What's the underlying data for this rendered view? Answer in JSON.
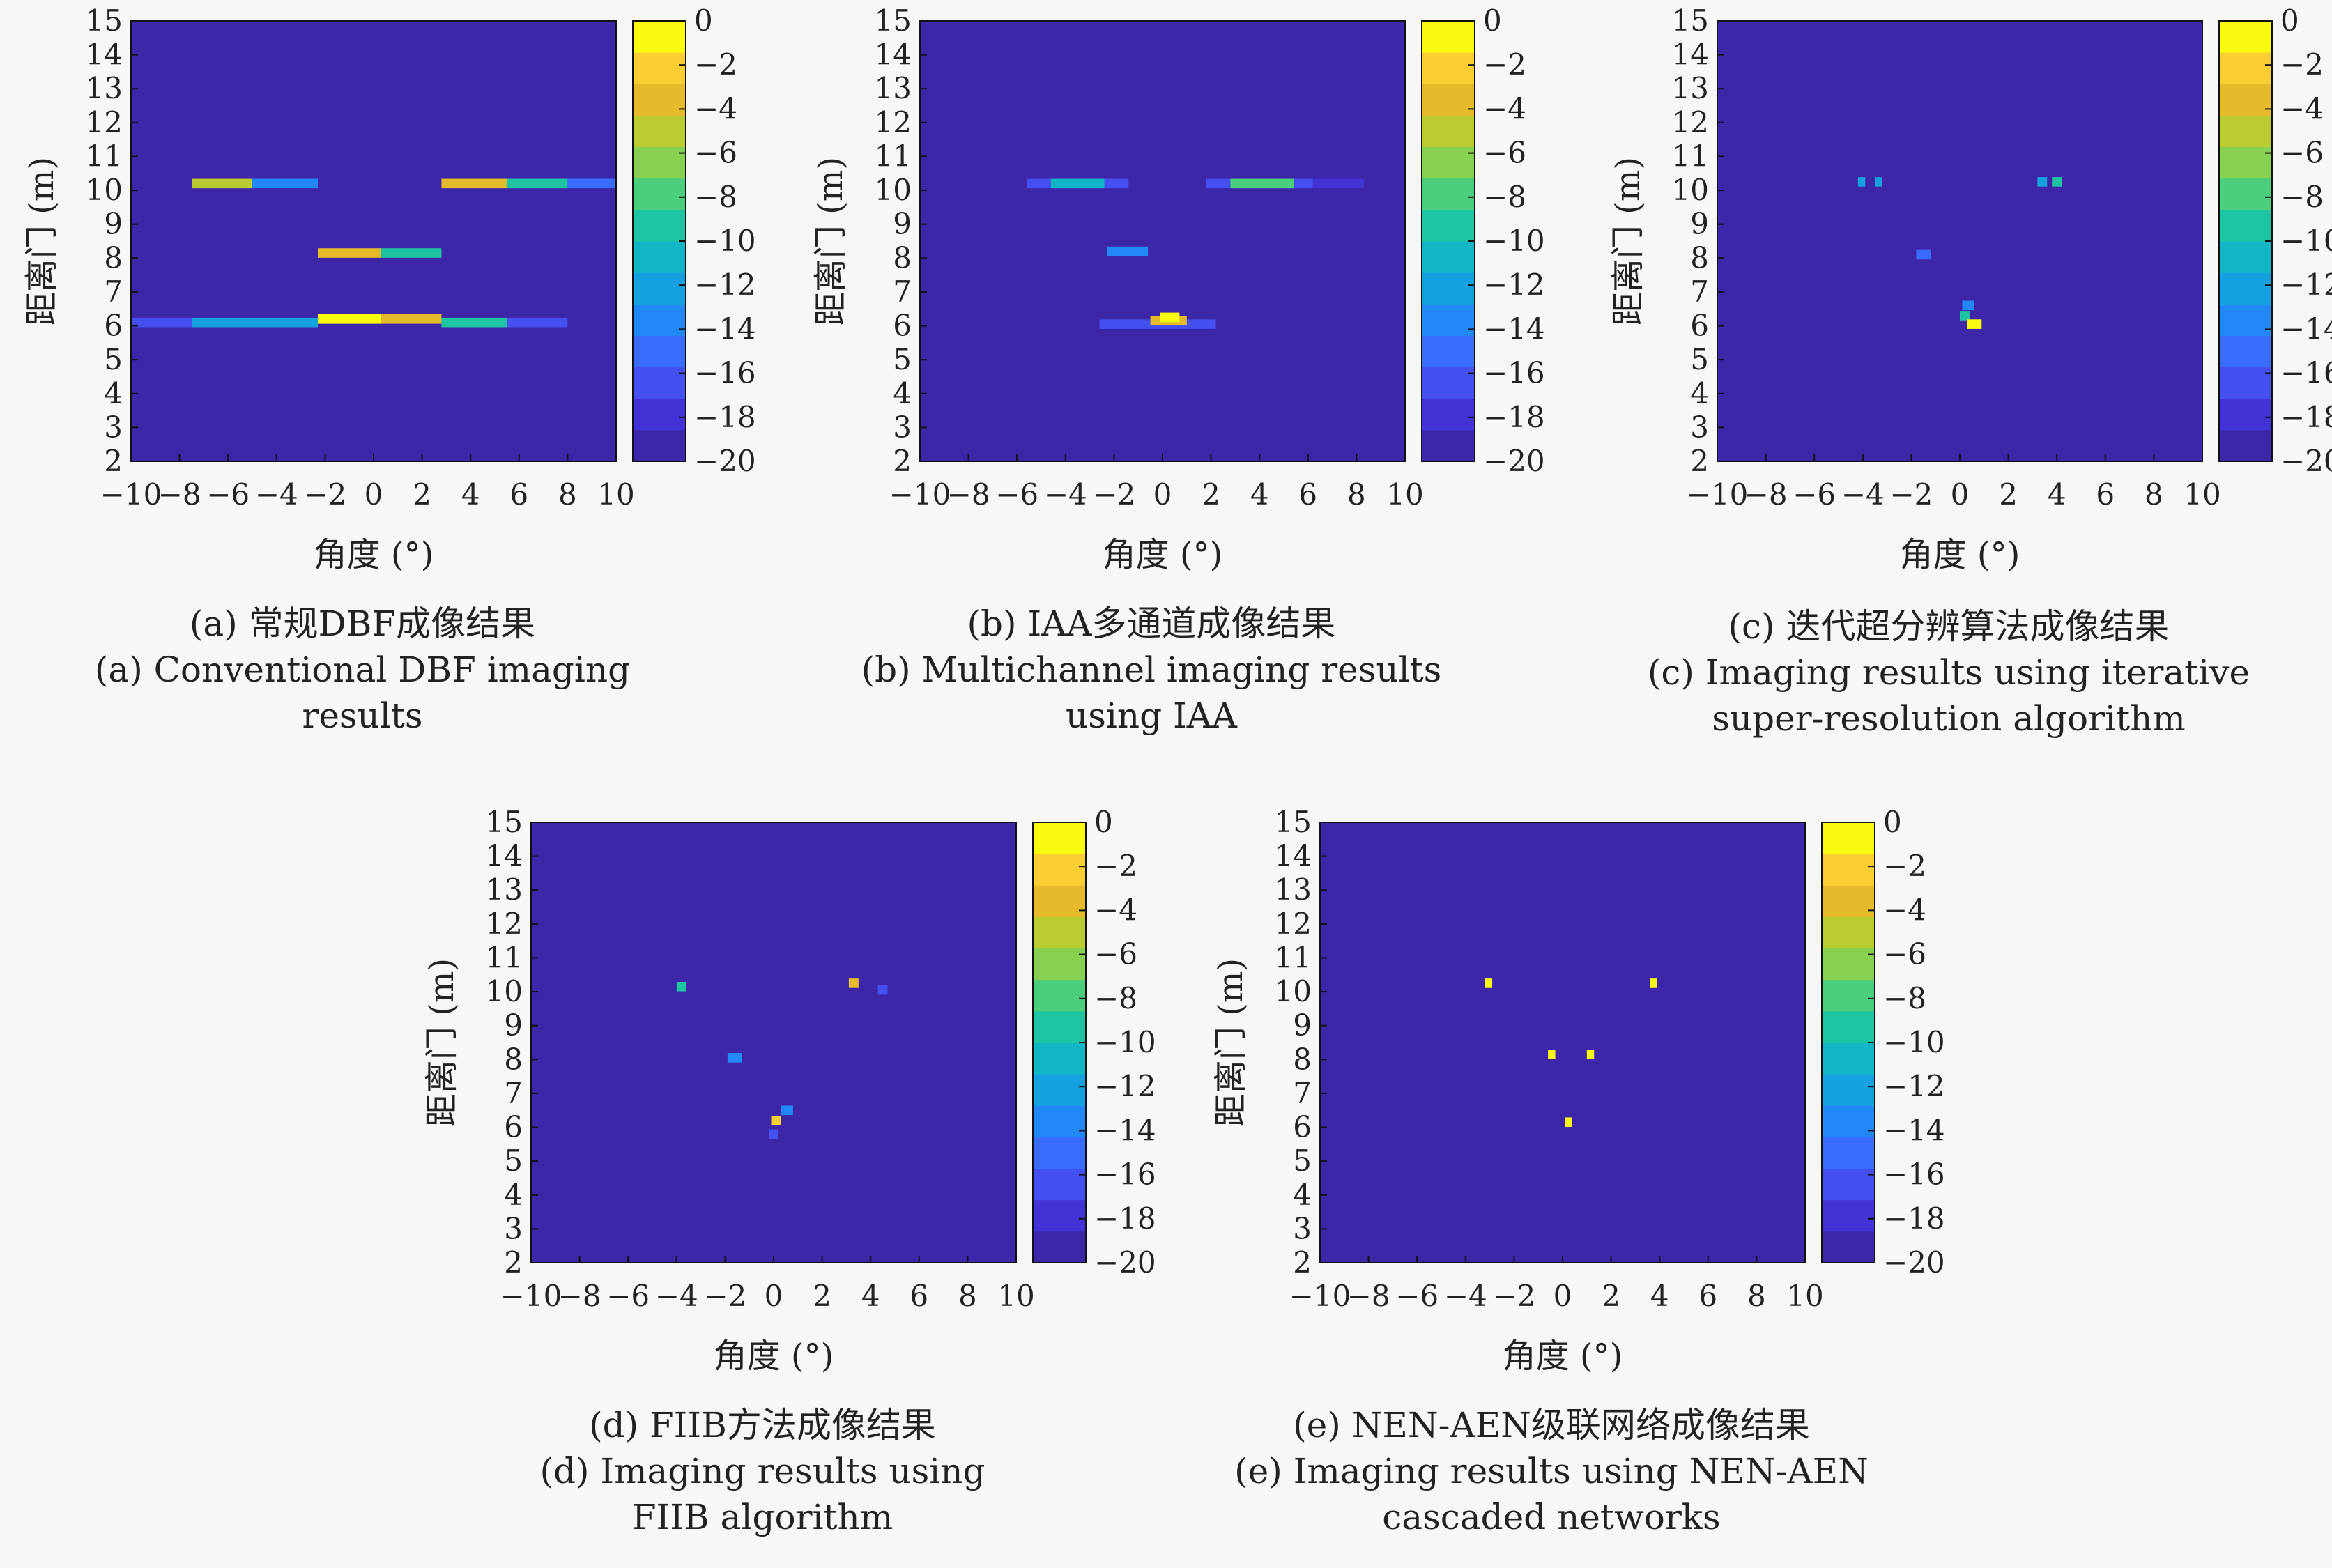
{
  "colors": {
    "background_level": "#3e26a8",
    "colormap": [
      "#3e26a8",
      "#4332d6",
      "#4450f0",
      "#3a6cfd",
      "#2188f6",
      "#15a1e0",
      "#11b5c6",
      "#1fc4a2",
      "#4ccf7c",
      "#86d14f",
      "#bbcb32",
      "#e5bb2c",
      "#fbcf33",
      "#f9fb0e"
    ]
  },
  "chart_data": [
    {
      "id": "a",
      "type": "heatmap",
      "xlabel": "角度 (°)",
      "ylabel": "距离门 (m)",
      "xlim": [
        -10,
        10
      ],
      "ylim": [
        2,
        15
      ],
      "xticks": [
        "−10",
        "−8",
        "−6",
        "−4",
        "−2",
        "0",
        "2",
        "4",
        "6",
        "8",
        "10"
      ],
      "yticks": [
        "2",
        "3",
        "4",
        "5",
        "6",
        "7",
        "8",
        "9",
        "10",
        "11",
        "12",
        "13",
        "14",
        "15"
      ],
      "colorbar": {
        "range": [
          -20,
          0
        ],
        "ticks": [
          "0",
          "−2",
          "−4",
          "−6",
          "−8",
          "−10",
          "−12",
          "−14",
          "−16",
          "−18",
          "−20"
        ]
      },
      "caption": [
        "(a) 常规DBF成像结果",
        "(a) Conventional DBF imaging",
        "results"
      ],
      "features": [
        {
          "x0": -7.5,
          "x1": -5.0,
          "y": 10.2,
          "level": -5
        },
        {
          "x0": -5.0,
          "x1": -2.3,
          "y": 10.2,
          "level": -13
        },
        {
          "x0": 2.8,
          "x1": 5.5,
          "y": 10.2,
          "level": -3
        },
        {
          "x0": 5.5,
          "x1": 8.0,
          "y": 10.2,
          "level": -10
        },
        {
          "x0": 8.0,
          "x1": 10.0,
          "y": 10.2,
          "level": -15
        },
        {
          "x0": -2.3,
          "x1": 0.3,
          "y": 8.15,
          "level": -4
        },
        {
          "x0": 0.3,
          "x1": 2.8,
          "y": 8.15,
          "level": -9
        },
        {
          "x0": -10.0,
          "x1": -7.5,
          "y": 6.1,
          "level": -16
        },
        {
          "x0": -7.5,
          "x1": -2.3,
          "y": 6.1,
          "level": -12
        },
        {
          "x0": -2.3,
          "x1": 0.3,
          "y": 6.2,
          "level": -1
        },
        {
          "x0": 0.3,
          "x1": 2.8,
          "y": 6.2,
          "level": -4
        },
        {
          "x0": 2.8,
          "x1": 5.5,
          "y": 6.1,
          "level": -10
        },
        {
          "x0": 5.5,
          "x1": 8.0,
          "y": 6.1,
          "level": -16
        }
      ]
    },
    {
      "id": "b",
      "type": "heatmap",
      "xlabel": "角度 (°)",
      "ylabel": "距离门 (m)",
      "xlim": [
        -10,
        10
      ],
      "ylim": [
        2,
        15
      ],
      "xticks": [
        "−10",
        "−8",
        "−6",
        "−4",
        "−2",
        "0",
        "2",
        "4",
        "6",
        "8",
        "10"
      ],
      "yticks": [
        "2",
        "3",
        "4",
        "5",
        "6",
        "7",
        "8",
        "9",
        "10",
        "11",
        "12",
        "13",
        "14",
        "15"
      ],
      "colorbar": {
        "range": [
          -20,
          0
        ],
        "ticks": [
          "0",
          "−2",
          "−4",
          "−6",
          "−8",
          "−10",
          "−12",
          "−14",
          "−16",
          "−18",
          "−20"
        ]
      },
      "caption": [
        "(b) IAA多通道成像结果",
        "(b) Multichannel imaging results",
        "using IAA"
      ],
      "features": [
        {
          "x0": -5.6,
          "x1": -1.4,
          "y": 10.2,
          "level": -16
        },
        {
          "x0": -4.6,
          "x1": -2.4,
          "y": 10.2,
          "level": -11
        },
        {
          "x0": 1.8,
          "x1": 6.2,
          "y": 10.2,
          "level": -16
        },
        {
          "x0": 2.8,
          "x1": 5.4,
          "y": 10.2,
          "level": -8
        },
        {
          "x0": 6.2,
          "x1": 8.3,
          "y": 10.2,
          "level": -18
        },
        {
          "x0": -2.3,
          "x1": -0.6,
          "y": 8.2,
          "level": -14
        },
        {
          "x0": -2.6,
          "x1": 2.2,
          "y": 6.05,
          "level": -16
        },
        {
          "x0": -0.5,
          "x1": 1.0,
          "y": 6.15,
          "level": -4
        },
        {
          "x0": -0.1,
          "x1": 0.7,
          "y": 6.25,
          "level": -1
        }
      ]
    },
    {
      "id": "c",
      "type": "heatmap",
      "xlabel": "角度 (°)",
      "ylabel": "距离门 (m)",
      "xlim": [
        -10,
        10
      ],
      "ylim": [
        2,
        15
      ],
      "xticks": [
        "−10",
        "−8",
        "−6",
        "−4",
        "−2",
        "0",
        "2",
        "4",
        "6",
        "8",
        "10"
      ],
      "yticks": [
        "2",
        "3",
        "4",
        "5",
        "6",
        "7",
        "8",
        "9",
        "10",
        "11",
        "12",
        "13",
        "14",
        "15"
      ],
      "colorbar": {
        "range": [
          -20,
          0
        ],
        "ticks": [
          "0",
          "−2",
          "−4",
          "−6",
          "−8",
          "−10",
          "−12",
          "−14",
          "−16",
          "−18",
          "−20"
        ]
      },
      "caption": [
        "(c) 迭代超分辨算法成像结果",
        "(c) Imaging results using iterative",
        "super-resolution algorithm"
      ],
      "features": [
        {
          "x0": -4.2,
          "x1": -3.9,
          "y": 10.25,
          "level": -12
        },
        {
          "x0": -3.5,
          "x1": -3.2,
          "y": 10.25,
          "level": -12
        },
        {
          "x0": 3.2,
          "x1": 3.6,
          "y": 10.25,
          "level": -12
        },
        {
          "x0": 3.8,
          "x1": 4.2,
          "y": 10.25,
          "level": -10
        },
        {
          "x0": -1.8,
          "x1": -1.2,
          "y": 8.1,
          "level": -15
        },
        {
          "x0": 0.1,
          "x1": 0.6,
          "y": 6.6,
          "level": -14
        },
        {
          "x0": 0.0,
          "x1": 0.4,
          "y": 6.3,
          "level": -10
        },
        {
          "x0": 0.3,
          "x1": 0.9,
          "y": 6.05,
          "level": -1
        }
      ]
    },
    {
      "id": "d",
      "type": "heatmap",
      "xlabel": "角度 (°)",
      "ylabel": "距离门 (m)",
      "xlim": [
        -10,
        10
      ],
      "ylim": [
        2,
        15
      ],
      "xticks": [
        "−10",
        "−8",
        "−6",
        "−4",
        "−2",
        "0",
        "2",
        "4",
        "6",
        "8",
        "10"
      ],
      "yticks": [
        "2",
        "3",
        "4",
        "5",
        "6",
        "7",
        "8",
        "9",
        "10",
        "11",
        "12",
        "13",
        "14",
        "15"
      ],
      "colorbar": {
        "range": [
          -20,
          0
        ],
        "ticks": [
          "0",
          "−2",
          "−4",
          "−6",
          "−8",
          "−10",
          "−12",
          "−14",
          "−16",
          "−18",
          "−20"
        ]
      },
      "caption": [
        "(d) FIIB方法成像结果",
        "(d) Imaging results using",
        "FIIB algorithm"
      ],
      "features": [
        {
          "x0": -4.0,
          "x1": -3.6,
          "y": 10.15,
          "level": -9
        },
        {
          "x0": 3.1,
          "x1": 3.5,
          "y": 10.25,
          "level": -3
        },
        {
          "x0": 4.3,
          "x1": 4.7,
          "y": 10.05,
          "level": -16
        },
        {
          "x0": -1.9,
          "x1": -1.3,
          "y": 8.05,
          "level": -14
        },
        {
          "x0": -0.1,
          "x1": 0.3,
          "y": 6.2,
          "level": -2
        },
        {
          "x0": -0.2,
          "x1": 0.2,
          "y": 5.8,
          "level": -16
        },
        {
          "x0": 0.3,
          "x1": 0.8,
          "y": 6.5,
          "level": -14
        }
      ]
    },
    {
      "id": "e",
      "type": "heatmap",
      "xlabel": "角度 (°)",
      "ylabel": "距离门 (m)",
      "xlim": [
        -10,
        10
      ],
      "ylim": [
        2,
        15
      ],
      "xticks": [
        "−10",
        "−8",
        "−6",
        "−4",
        "−2",
        "0",
        "2",
        "4",
        "6",
        "8",
        "10"
      ],
      "yticks": [
        "2",
        "3",
        "4",
        "5",
        "6",
        "7",
        "8",
        "9",
        "10",
        "11",
        "12",
        "13",
        "14",
        "15"
      ],
      "colorbar": {
        "range": [
          -20,
          0
        ],
        "ticks": [
          "0",
          "−2",
          "−4",
          "−6",
          "−8",
          "−10",
          "−12",
          "−14",
          "−16",
          "−18",
          "−20"
        ]
      },
      "caption": [
        "(e) NEN-AEN级联网络成像结果",
        "(e) Imaging results using NEN-AEN",
        "cascaded networks"
      ],
      "features": [
        {
          "x0": -3.2,
          "x1": -2.9,
          "y": 10.25,
          "level": -1
        },
        {
          "x0": 3.6,
          "x1": 3.9,
          "y": 10.25,
          "level": -1
        },
        {
          "x0": -0.6,
          "x1": -0.3,
          "y": 8.15,
          "level": -1
        },
        {
          "x0": 1.0,
          "x1": 1.3,
          "y": 8.15,
          "level": -1
        },
        {
          "x0": 0.1,
          "x1": 0.4,
          "y": 6.15,
          "level": -1
        }
      ]
    }
  ]
}
